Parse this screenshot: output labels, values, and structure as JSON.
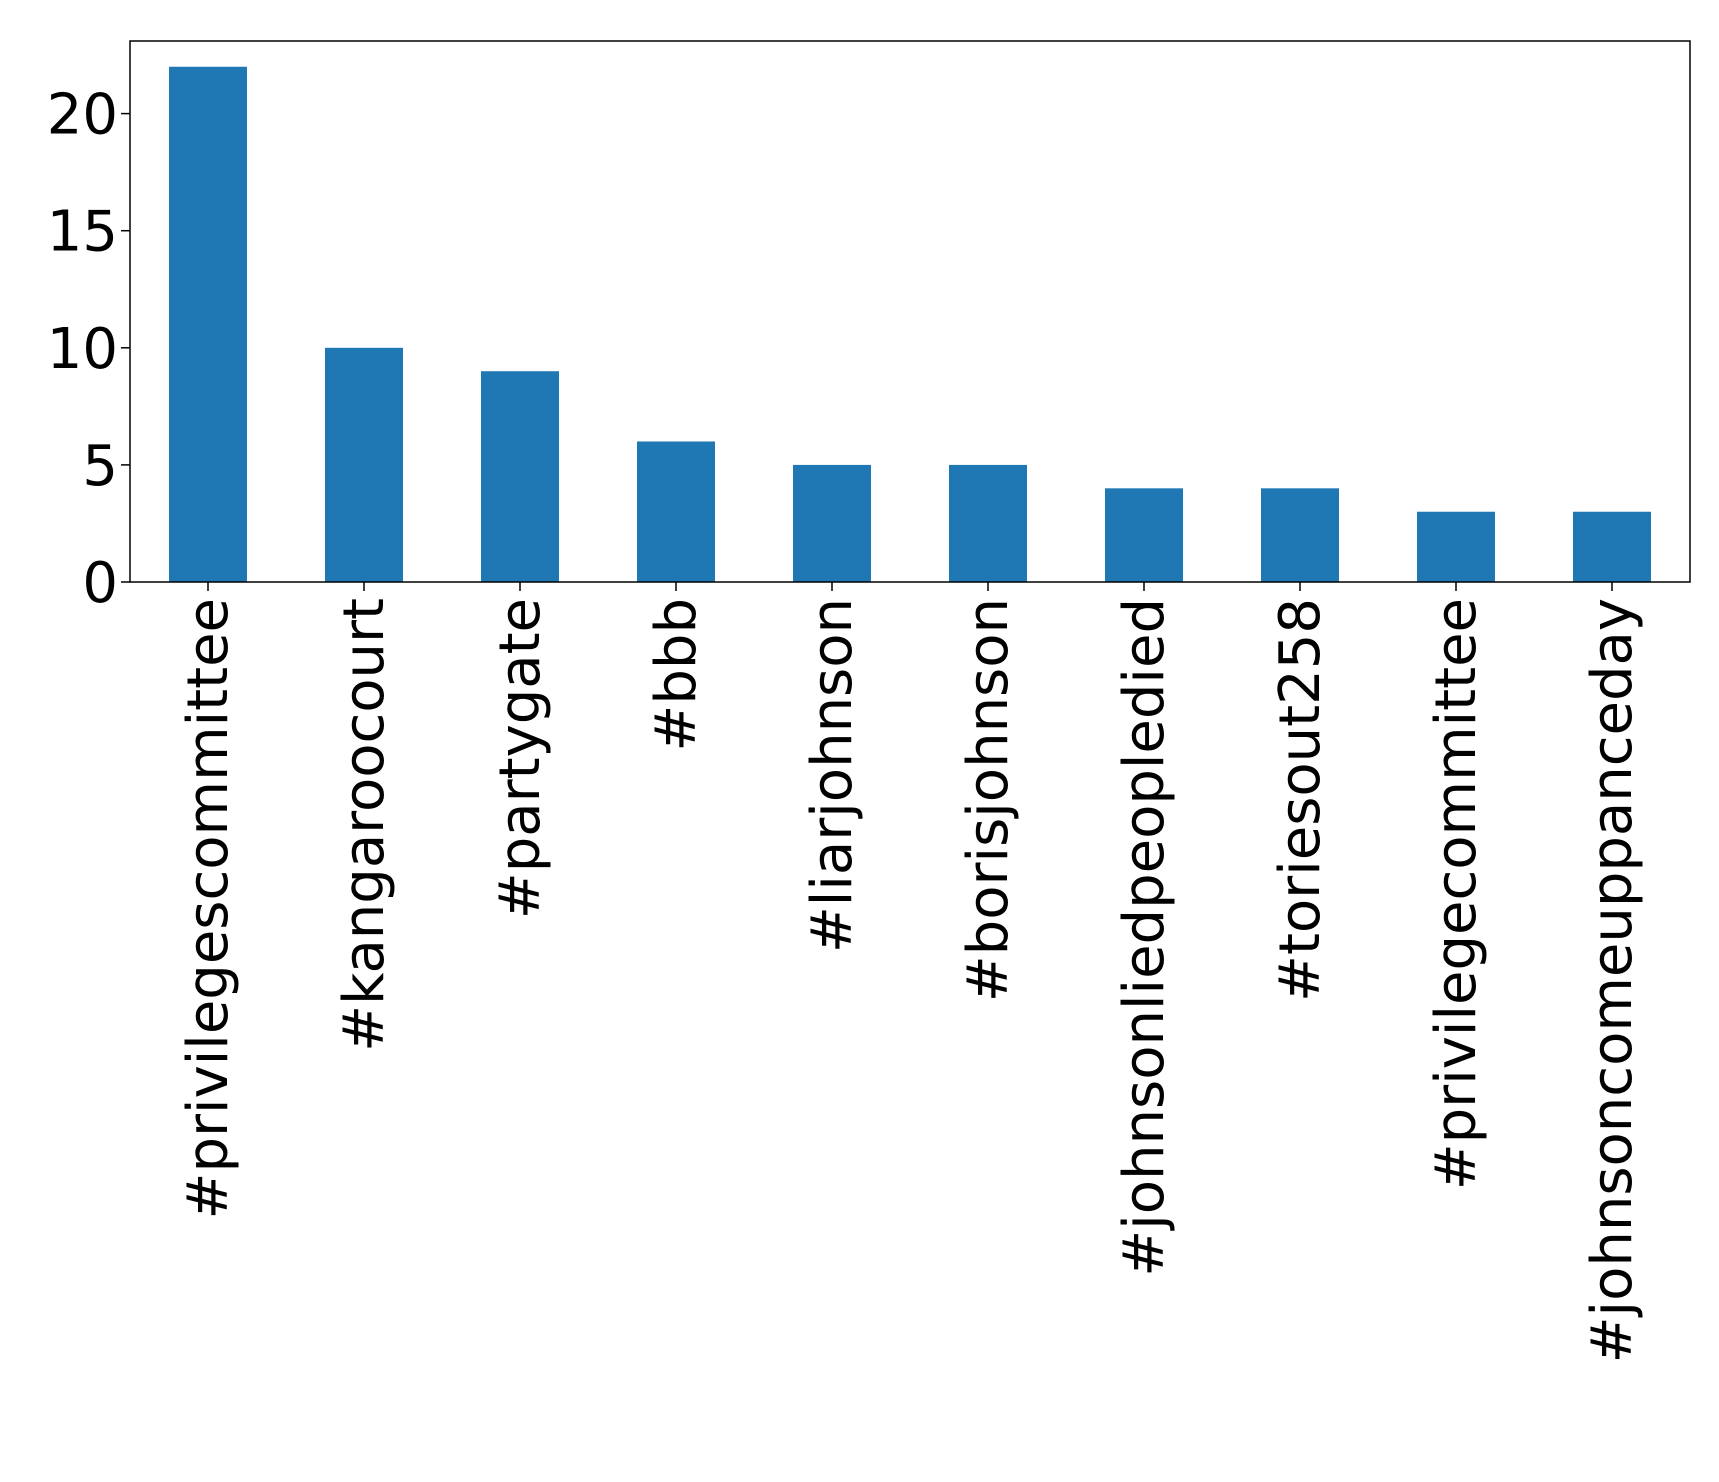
{
  "chart_data": {
    "type": "bar",
    "title": "",
    "xlabel": "",
    "ylabel": "",
    "categories": [
      "#privilegescommittee",
      "#kangaroocourt",
      "#partygate",
      "#bbb",
      "#liarjohnson",
      "#borisjohnson",
      "#johnsonliedpeopledied",
      "#toriesout258",
      "#privilegecommittee",
      "#johnsoncomeuppanceday"
    ],
    "values": [
      22,
      10,
      9,
      6,
      5,
      5,
      4,
      4,
      3,
      3
    ],
    "ylim": [
      0,
      23.1
    ],
    "yticks": [
      0,
      5,
      10,
      15,
      20
    ],
    "grid": false,
    "legend": "none",
    "colors": {
      "bar": "#1f77b4",
      "axis": "#000000",
      "background": "#ffffff"
    }
  }
}
